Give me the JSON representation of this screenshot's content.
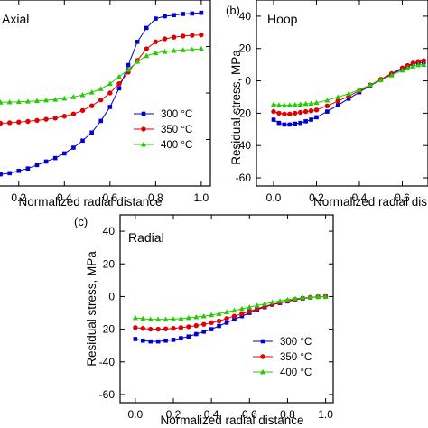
{
  "colors": {
    "300": "#0000cc",
    "350": "#e00000",
    "400": "#22cc00"
  },
  "chart_data": [
    {
      "panel": "",
      "type": "line",
      "title": "Axial",
      "xlabel": "Normalized radial distance",
      "ylabel": "",
      "xlim": [
        0.0,
        1.0
      ],
      "xticks": [
        "0",
        "0.2",
        "0.4",
        "0.6",
        "0.8",
        "1.0"
      ],
      "yticks": [],
      "ylim": [
        -40,
        40
      ],
      "grid": false,
      "legend": {
        "position": "bottom-right",
        "entries": [
          "300 °C",
          "350 °C",
          "400 °C"
        ]
      },
      "series": [
        {
          "name": "300 °C",
          "marker": "square",
          "color": "#0000cc",
          "x": [
            0.0,
            0.04,
            0.08,
            0.12,
            0.16,
            0.2,
            0.24,
            0.28,
            0.32,
            0.36,
            0.4,
            0.44,
            0.48,
            0.52,
            0.56,
            0.6,
            0.64,
            0.68,
            0.72,
            0.76,
            0.8,
            0.84,
            0.88,
            0.92,
            0.96,
            1.0
          ],
          "y": [
            -33.5,
            -34.5,
            -35,
            -35,
            -34.5,
            -33.5,
            -32.5,
            -31,
            -29.5,
            -28,
            -26,
            -23.5,
            -20.5,
            -17,
            -12,
            -6,
            2,
            12,
            22,
            28,
            32,
            33,
            33.5,
            34,
            34.2,
            34.5
          ]
        },
        {
          "name": "350 °C",
          "marker": "circle",
          "color": "#e00000",
          "x": [
            0.0,
            0.04,
            0.08,
            0.12,
            0.16,
            0.2,
            0.24,
            0.28,
            0.32,
            0.36,
            0.4,
            0.44,
            0.48,
            0.52,
            0.56,
            0.6,
            0.64,
            0.68,
            0.72,
            0.76,
            0.8,
            0.84,
            0.88,
            0.92,
            0.96,
            1.0
          ],
          "y": [
            -12.5,
            -13,
            -13,
            -13,
            -12.8,
            -12.5,
            -12.2,
            -11.8,
            -11.3,
            -10.8,
            -10,
            -9,
            -7.5,
            -5.5,
            -3,
            0,
            4,
            9,
            14,
            19,
            22,
            23.3,
            24,
            24.5,
            24.8,
            25
          ]
        },
        {
          "name": "400 °C",
          "marker": "triangle",
          "color": "#22cc00",
          "x": [
            0.0,
            0.04,
            0.08,
            0.12,
            0.16,
            0.2,
            0.24,
            0.28,
            0.32,
            0.36,
            0.4,
            0.44,
            0.48,
            0.52,
            0.56,
            0.6,
            0.64,
            0.68,
            0.72,
            0.76,
            0.8,
            0.84,
            0.88,
            0.92,
            0.96,
            1.0
          ],
          "y": [
            -4,
            -4,
            -4,
            -4,
            -3.9,
            -3.8,
            -3.6,
            -3.4,
            -3.1,
            -2.8,
            -2.3,
            -1.7,
            -0.8,
            0.3,
            1.8,
            4,
            7,
            10,
            13.5,
            16,
            17.2,
            17.8,
            18.2,
            18.5,
            18.7,
            19
          ]
        }
      ]
    },
    {
      "panel": "(b)",
      "type": "line",
      "title": "Hoop",
      "xlabel": "Normalized radial dis",
      "ylabel": "Residual stress, MPa",
      "xlim": [
        0.0,
        0.7
      ],
      "xticks": [
        "0.0",
        "0.2",
        "0.4",
        "0.6"
      ],
      "yticks": [
        "40",
        "20",
        "0",
        "-20",
        "-40",
        "-60"
      ],
      "ylim": [
        -65,
        50
      ],
      "grid": false,
      "legend": null,
      "series": [
        {
          "name": "300 °C",
          "marker": "square",
          "color": "#0000cc",
          "x": [
            0.0,
            0.025,
            0.05,
            0.075,
            0.1,
            0.125,
            0.15,
            0.175,
            0.2,
            0.25,
            0.3,
            0.35,
            0.4,
            0.45,
            0.5,
            0.55,
            0.6,
            0.625,
            0.65,
            0.675,
            0.7
          ],
          "y": [
            -24,
            -26,
            -27,
            -27,
            -26.5,
            -26,
            -25,
            -24,
            -22.5,
            -19,
            -15,
            -11,
            -7,
            -3,
            0.5,
            4,
            7.5,
            9,
            10.5,
            11.2,
            11.5
          ]
        },
        {
          "name": "350 °C",
          "marker": "circle",
          "color": "#e00000",
          "x": [
            0.0,
            0.025,
            0.05,
            0.075,
            0.1,
            0.125,
            0.15,
            0.175,
            0.2,
            0.25,
            0.3,
            0.35,
            0.4,
            0.45,
            0.5,
            0.55,
            0.6,
            0.625,
            0.65,
            0.675,
            0.7
          ],
          "y": [
            -19,
            -20,
            -20.5,
            -20.5,
            -20,
            -19.5,
            -19,
            -18.5,
            -18,
            -15.5,
            -12.5,
            -9.5,
            -6,
            -2.5,
            1,
            4.5,
            8,
            9.5,
            11,
            12,
            12.5
          ]
        },
        {
          "name": "400 °C",
          "marker": "triangle",
          "color": "#22cc00",
          "x": [
            0.0,
            0.025,
            0.05,
            0.075,
            0.1,
            0.125,
            0.15,
            0.175,
            0.2,
            0.25,
            0.3,
            0.35,
            0.4,
            0.45,
            0.5,
            0.55,
            0.6,
            0.625,
            0.65,
            0.675,
            0.7
          ],
          "y": [
            -14.5,
            -15,
            -15,
            -15,
            -14.8,
            -14.5,
            -14.2,
            -14,
            -13.5,
            -12,
            -10,
            -8,
            -5.5,
            -2.5,
            0.5,
            3.5,
            6.5,
            8,
            9,
            9.8,
            10
          ]
        }
      ]
    },
    {
      "panel": "(c)",
      "type": "line",
      "title": "Radial",
      "xlabel": "Normalized radial distance",
      "ylabel": "Residual stress, MPa",
      "xlim": [
        0.0,
        1.0
      ],
      "xticks": [
        "0.0",
        "0.2",
        "0.4",
        "0.6",
        "0.8",
        "1.0"
      ],
      "yticks": [
        "40",
        "20",
        "0",
        "-20",
        "-40",
        "-60"
      ],
      "ylim": [
        -65,
        50
      ],
      "grid": false,
      "legend": {
        "position": "bottom-right",
        "entries": [
          "300 °C",
          "350 °C",
          "400 °C"
        ]
      },
      "series": [
        {
          "name": "300 °C",
          "marker": "square",
          "color": "#0000cc",
          "x": [
            0.0,
            0.04,
            0.08,
            0.12,
            0.16,
            0.2,
            0.24,
            0.28,
            0.32,
            0.36,
            0.4,
            0.44,
            0.48,
            0.52,
            0.56,
            0.6,
            0.64,
            0.68,
            0.72,
            0.76,
            0.8,
            0.84,
            0.88,
            0.92,
            0.96,
            1.0
          ],
          "y": [
            -26,
            -27,
            -27.5,
            -27.5,
            -27,
            -26.5,
            -25.5,
            -24.5,
            -23,
            -21.5,
            -20,
            -18,
            -16,
            -14,
            -12,
            -10,
            -8,
            -6.5,
            -5,
            -4,
            -3,
            -2,
            -1.2,
            -0.6,
            -0.2,
            0
          ]
        },
        {
          "name": "350 °C",
          "marker": "circle",
          "color": "#e00000",
          "x": [
            0.0,
            0.04,
            0.08,
            0.12,
            0.16,
            0.2,
            0.24,
            0.28,
            0.32,
            0.36,
            0.4,
            0.44,
            0.48,
            0.52,
            0.56,
            0.6,
            0.64,
            0.68,
            0.72,
            0.76,
            0.8,
            0.84,
            0.88,
            0.92,
            0.96,
            1.0
          ],
          "y": [
            -19,
            -19.5,
            -20,
            -20,
            -19.8,
            -19.5,
            -19,
            -18.5,
            -17.8,
            -17,
            -16,
            -15,
            -13.5,
            -12,
            -10.5,
            -9,
            -7.5,
            -6,
            -4.8,
            -3.7,
            -2.7,
            -1.8,
            -1.1,
            -0.5,
            -0.1,
            0
          ]
        },
        {
          "name": "400 °C",
          "marker": "triangle",
          "color": "#22cc00",
          "x": [
            0.0,
            0.04,
            0.08,
            0.12,
            0.16,
            0.2,
            0.24,
            0.28,
            0.32,
            0.36,
            0.4,
            0.44,
            0.48,
            0.52,
            0.56,
            0.6,
            0.64,
            0.68,
            0.72,
            0.76,
            0.8,
            0.84,
            0.88,
            0.92,
            0.96,
            1.0
          ],
          "y": [
            -13,
            -13.5,
            -14,
            -14,
            -14,
            -13.8,
            -13.5,
            -13,
            -12.5,
            -12,
            -11.3,
            -10.5,
            -9.5,
            -8.5,
            -7.5,
            -6.5,
            -5.5,
            -4.5,
            -3.5,
            -2.7,
            -2,
            -1.3,
            -0.8,
            -0.4,
            -0.1,
            0
          ]
        }
      ]
    }
  ]
}
